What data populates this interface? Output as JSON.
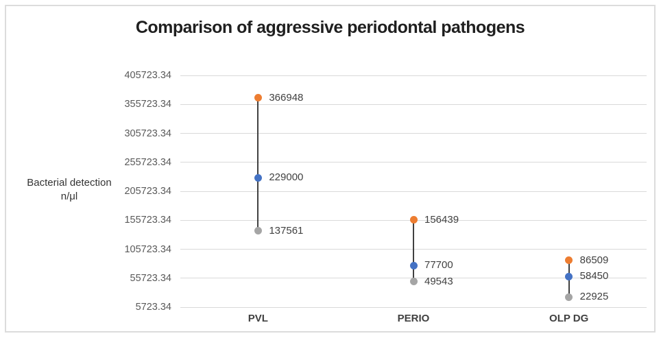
{
  "chart_data": {
    "type": "stock_high_low",
    "title": "Comparison of aggressive periodontal pathogens",
    "ylabel": "Bacterial detection n/μl",
    "ylabel_line1": "Bacterial detection",
    "ylabel_line2": "n/μl",
    "xlabel": "",
    "categories": [
      "PVL",
      "PERIO",
      "OLP DG"
    ],
    "series": [
      {
        "name": "high",
        "color": "#ED7D31",
        "values": [
          366948,
          156439,
          86509
        ],
        "labels": [
          "366948",
          "156439",
          "86509"
        ]
      },
      {
        "name": "mid",
        "color": "#4472C4",
        "values": [
          229000,
          77700,
          58450
        ],
        "labels": [
          "229000",
          "77700",
          "58450"
        ]
      },
      {
        "name": "low",
        "color": "#A5A5A5",
        "values": [
          137561,
          49543,
          22925
        ],
        "labels": [
          "137561",
          "49543",
          "22925"
        ]
      }
    ],
    "y_axis": {
      "min": 5723.34,
      "max": 405723.34,
      "step": 50000,
      "tick_labels": [
        "405723.34",
        "355723.34",
        "305723.34",
        "255723.34",
        "205723.34",
        "155723.34",
        "105723.34",
        "55723.34",
        "5723.34"
      ]
    },
    "grid": "horizontal",
    "gridline_color": "#D9D9D9",
    "high_low_line_color": "#404040",
    "legend_position": "none"
  }
}
